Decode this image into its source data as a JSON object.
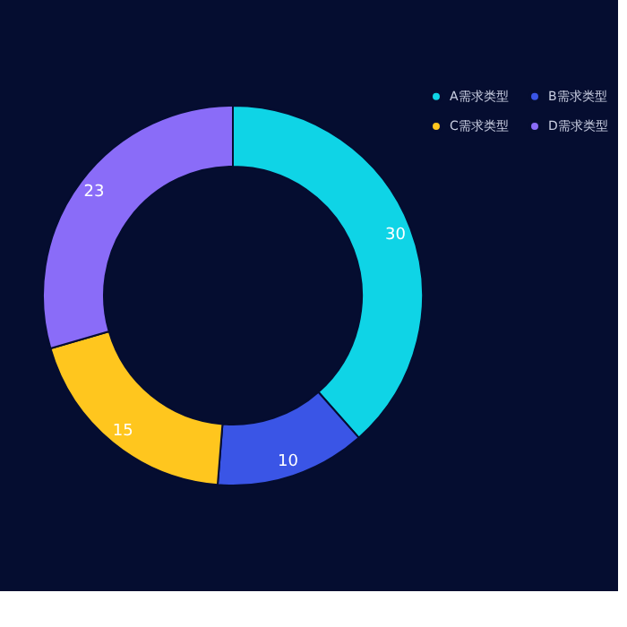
{
  "chart_data": {
    "type": "donut",
    "categories": [
      "A需求类型",
      "B需求类型",
      "C需求类型",
      "D需求类型"
    ],
    "values": [
      30,
      10,
      15,
      23
    ],
    "colors": [
      "#0fd4e6",
      "#3a55e6",
      "#ffc61e",
      "#8a6cf8"
    ],
    "data_labels": true,
    "legend": "right"
  }
}
